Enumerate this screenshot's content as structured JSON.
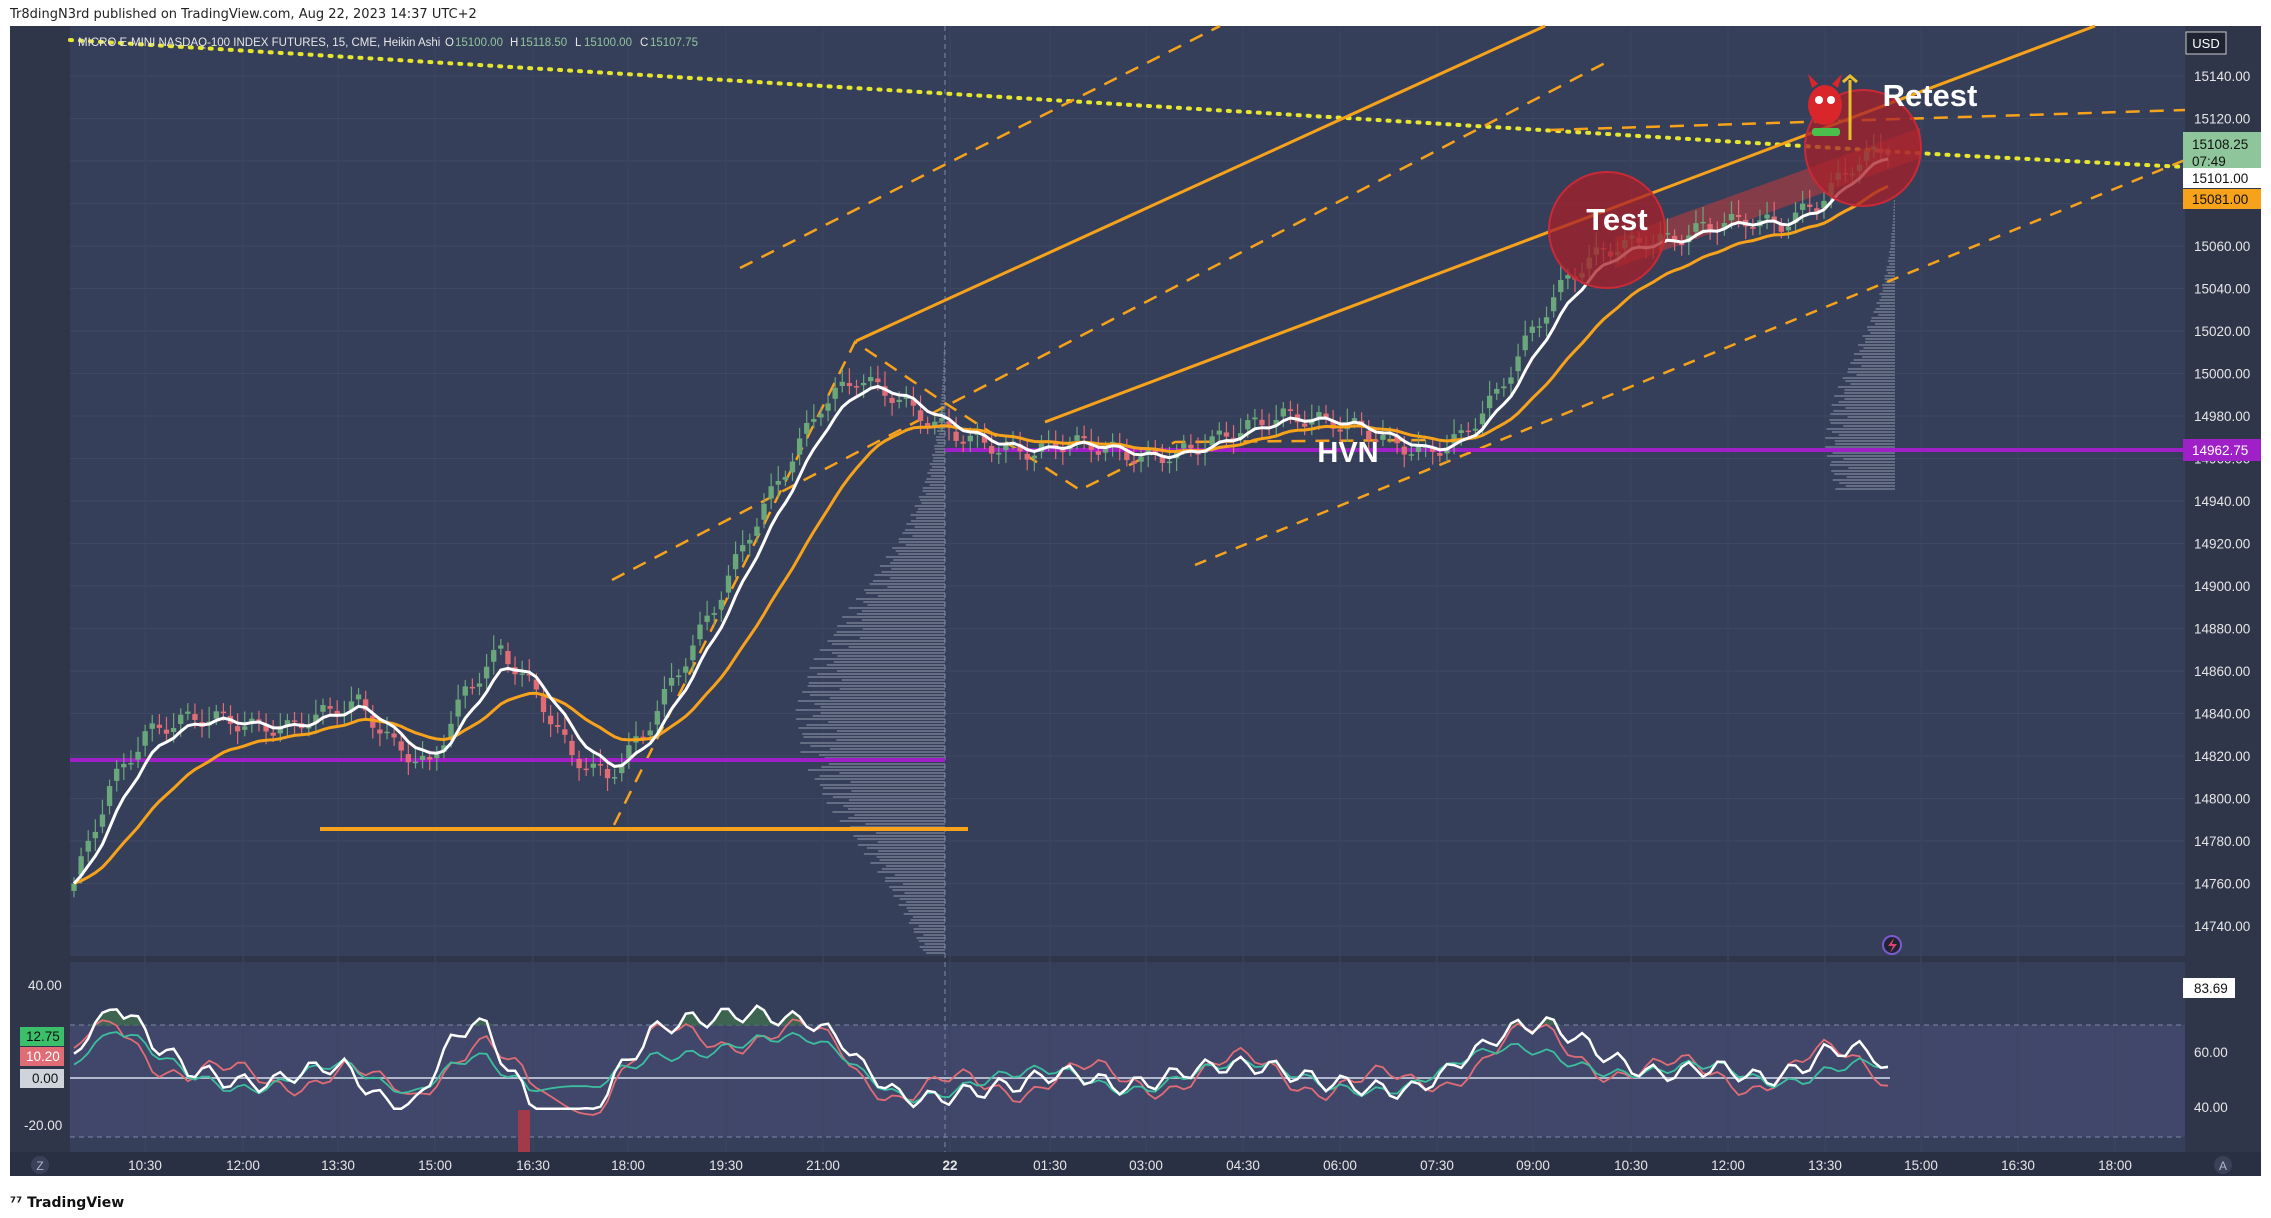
{
  "header": {
    "published": "Tr8dingN3rd published on TradingView.com, Aug 22, 2023 14:37 UTC+2"
  },
  "legend": {
    "symbol": "MICRO E-MINI NASDAQ-100 INDEX FUTURES, 15, CME, Heikin Ashi",
    "o_label": "O",
    "o": "15100.00",
    "h_label": "H",
    "h": "15118.50",
    "l_label": "L",
    "l": "15100.00",
    "c_label": "C",
    "c": "15107.75"
  },
  "currency": "USD",
  "footer": {
    "logo": "TradingView"
  },
  "price_axis": {
    "ticks": [
      "15140.00",
      "15120.00",
      "15100.00",
      "15080.00",
      "15060.00",
      "15040.00",
      "15020.00",
      "15000.00",
      "14980.00",
      "14960.00",
      "14940.00",
      "14920.00",
      "14900.00",
      "14880.00",
      "14860.00",
      "14840.00",
      "14820.00",
      "14800.00",
      "14780.00",
      "14760.00",
      "14740.00"
    ],
    "last_price": "15108.25",
    "countdown": "07:49",
    "line_white": "15101.00",
    "line_orange": "15081.00",
    "hvn_level": "14962.75"
  },
  "time_axis": [
    "10:30",
    "12:00",
    "13:30",
    "15:00",
    "16:30",
    "18:00",
    "19:30",
    "21:00",
    "22",
    "01:30",
    "03:00",
    "04:30",
    "06:00",
    "07:30",
    "09:00",
    "10:30",
    "12:00",
    "13:30",
    "15:00",
    "16:30",
    "18:00"
  ],
  "annotations": {
    "test": "Test",
    "retest": "Retest",
    "hvn": "HVN"
  },
  "oscillator": {
    "left_ticks": [
      "40.00",
      "-20.00"
    ],
    "left_badges": [
      "12.75",
      "10.20",
      "0.00"
    ],
    "right_ticks": [
      "60.00",
      "40.00"
    ],
    "right_badge": "83.69"
  },
  "axis_buttons": {
    "left": "Z",
    "right": "A"
  },
  "colors": {
    "background": "#363f5a",
    "up_candle": "#6aa77a",
    "down_candle": "#e06c75",
    "ema_white": "#ffffff",
    "ema_orange": "#f7a21b",
    "channel": "#f7a21b",
    "hvn_line": "#a020c8",
    "dotted_trend": "#e6e62e",
    "circle": "#a8202a"
  },
  "chart_data": {
    "type": "candlestick",
    "instrument": "MICRO E-MINI NASDAQ-100 INDEX FUTURES",
    "timeframe": "15",
    "exchange": "CME",
    "style": "Heikin Ashi",
    "ohlc_last": {
      "open": 15100.0,
      "high": 15118.5,
      "low": 15100.0,
      "close": 15107.75
    },
    "y_range": [
      14730,
      15150
    ],
    "close_path": [
      [
        0,
        14760
      ],
      [
        5,
        14805
      ],
      [
        10,
        14830
      ],
      [
        15,
        14837
      ],
      [
        20,
        14838
      ],
      [
        25,
        14834
      ],
      [
        30,
        14833
      ],
      [
        35,
        14840
      ],
      [
        40,
        14845
      ],
      [
        45,
        14825
      ],
      [
        50,
        14815
      ],
      [
        55,
        14850
      ],
      [
        60,
        14870
      ],
      [
        65,
        14850
      ],
      [
        70,
        14820
      ],
      [
        75,
        14810
      ],
      [
        80,
        14830
      ],
      [
        85,
        14860
      ],
      [
        90,
        14890
      ],
      [
        95,
        14925
      ],
      [
        100,
        14955
      ],
      [
        105,
        14985
      ],
      [
        110,
        14998
      ],
      [
        115,
        14990
      ],
      [
        120,
        14978
      ],
      [
        125,
        14970
      ],
      [
        130,
        14965
      ],
      [
        135,
        14963
      ],
      [
        140,
        14968
      ],
      [
        145,
        14965
      ],
      [
        150,
        14960
      ],
      [
        155,
        14962
      ],
      [
        160,
        14968
      ],
      [
        165,
        14975
      ],
      [
        170,
        14980
      ],
      [
        175,
        14978
      ],
      [
        180,
        14975
      ],
      [
        185,
        14968
      ],
      [
        190,
        14962
      ],
      [
        195,
        14970
      ],
      [
        200,
        14990
      ],
      [
        205,
        15020
      ],
      [
        210,
        15045
      ],
      [
        215,
        15058
      ],
      [
        220,
        15062
      ],
      [
        225,
        15063
      ],
      [
        230,
        15070
      ],
      [
        235,
        15072
      ],
      [
        240,
        15070
      ],
      [
        245,
        15080
      ],
      [
        250,
        15098
      ],
      [
        255,
        15107
      ]
    ],
    "levels": {
      "hvn_right": 14962.75,
      "hvn_left": 14815,
      "support": 14783,
      "last": 15108.25,
      "white_ema": 15101.0,
      "orange_ema": 15081.0
    },
    "oscillator_right_value": 83.69
  }
}
